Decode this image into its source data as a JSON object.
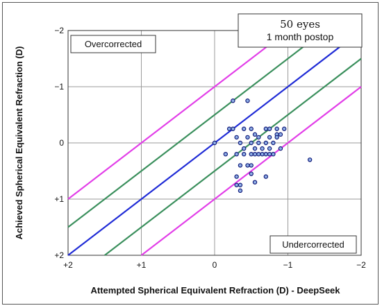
{
  "chart_data": {
    "type": "scatter",
    "title": "",
    "xlabel": "Attempted Spherical Equivalent Refraction (D) - DeepSeek",
    "ylabel": "Achieved Spherical Equivalent Refraction (D)",
    "xlim": [
      2,
      -2
    ],
    "ylim": [
      2,
      -2
    ],
    "x_ticks": [
      "+2",
      "+1",
      "0",
      "−1",
      "−2"
    ],
    "y_ticks": [
      "−2",
      "−1",
      "0",
      "+1",
      "+2"
    ],
    "grid": true,
    "annotations": {
      "overcorrected": "Overcorrected",
      "undercorrected": "Undercorrected",
      "info_line1": "50 eyes",
      "info_line2": "1 month postop"
    },
    "reference_lines": [
      {
        "offset": 0,
        "color": "#1f2bd6"
      },
      {
        "offset": 0.5,
        "color": "#3a8f5c"
      },
      {
        "offset": -0.5,
        "color": "#3a8f5c"
      },
      {
        "offset": 1.0,
        "color": "#e23ee8"
      },
      {
        "offset": -1.0,
        "color": "#e23ee8"
      }
    ],
    "points": [
      {
        "x": 0.0,
        "y": 0.0
      },
      {
        "x": -0.25,
        "y": -0.75
      },
      {
        "x": -0.45,
        "y": -0.75
      },
      {
        "x": -0.2,
        "y": -0.25
      },
      {
        "x": -0.25,
        "y": -0.25
      },
      {
        "x": -0.4,
        "y": -0.25
      },
      {
        "x": -0.5,
        "y": -0.25
      },
      {
        "x": -0.7,
        "y": -0.25
      },
      {
        "x": -0.75,
        "y": -0.25
      },
      {
        "x": -0.85,
        "y": -0.25
      },
      {
        "x": -0.95,
        "y": -0.25
      },
      {
        "x": -0.55,
        "y": -0.15
      },
      {
        "x": -0.85,
        "y": -0.15
      },
      {
        "x": -0.9,
        "y": -0.15
      },
      {
        "x": -0.3,
        "y": -0.1
      },
      {
        "x": -0.45,
        "y": -0.1
      },
      {
        "x": -0.6,
        "y": -0.1
      },
      {
        "x": -0.75,
        "y": -0.1
      },
      {
        "x": -0.85,
        "y": -0.1
      },
      {
        "x": -0.35,
        "y": 0.0
      },
      {
        "x": -0.5,
        "y": 0.0
      },
      {
        "x": -0.6,
        "y": 0.0
      },
      {
        "x": -0.7,
        "y": 0.0
      },
      {
        "x": -0.8,
        "y": 0.0
      },
      {
        "x": -0.4,
        "y": 0.1
      },
      {
        "x": -0.55,
        "y": 0.1
      },
      {
        "x": -0.65,
        "y": 0.1
      },
      {
        "x": -0.75,
        "y": 0.1
      },
      {
        "x": -0.9,
        "y": 0.1
      },
      {
        "x": -0.15,
        "y": 0.2
      },
      {
        "x": -0.3,
        "y": 0.2
      },
      {
        "x": -0.4,
        "y": 0.2
      },
      {
        "x": -0.5,
        "y": 0.2
      },
      {
        "x": -0.55,
        "y": 0.2
      },
      {
        "x": -0.6,
        "y": 0.2
      },
      {
        "x": -0.65,
        "y": 0.2
      },
      {
        "x": -0.7,
        "y": 0.2
      },
      {
        "x": -0.75,
        "y": 0.2
      },
      {
        "x": -0.8,
        "y": 0.2
      },
      {
        "x": -1.3,
        "y": 0.3
      },
      {
        "x": -0.35,
        "y": 0.4
      },
      {
        "x": -0.45,
        "y": 0.4
      },
      {
        "x": -0.5,
        "y": 0.4
      },
      {
        "x": -0.5,
        "y": 0.55
      },
      {
        "x": -0.3,
        "y": 0.6
      },
      {
        "x": -0.7,
        "y": 0.6
      },
      {
        "x": -0.3,
        "y": 0.75
      },
      {
        "x": -0.35,
        "y": 0.75
      },
      {
        "x": -0.55,
        "y": 0.7
      },
      {
        "x": -0.35,
        "y": 0.85
      }
    ]
  }
}
